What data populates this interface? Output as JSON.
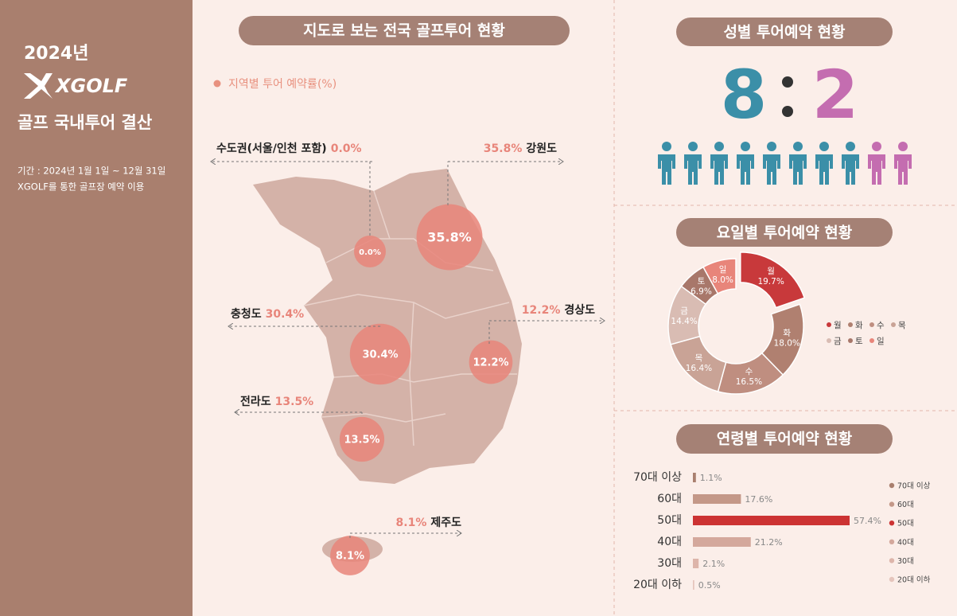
{
  "sidebar": {
    "year": "2024년",
    "logo": "XGOLF",
    "title": "골프 국내투어 결산",
    "period": "기간 : 2024년 1월 1일 ~ 12월 31일",
    "note": "XGOLF를 통한 골프장 예약 이용"
  },
  "map": {
    "title": "지도로 보는 전국 골프투어 현황",
    "legend": "지역별 투어 예약률(%)",
    "regions": [
      {
        "name": "수도권(서울/인천 포함)",
        "value": 0.0,
        "label": "0.0%"
      },
      {
        "name": "강원도",
        "value": 35.8,
        "label": "35.8%"
      },
      {
        "name": "충청도",
        "value": 30.4,
        "label": "30.4%"
      },
      {
        "name": "경상도",
        "value": 12.2,
        "label": "12.2%"
      },
      {
        "name": "전라도",
        "value": 13.5,
        "label": "13.5%"
      },
      {
        "name": "제주도",
        "value": 8.1,
        "label": "8.1%"
      }
    ]
  },
  "gender": {
    "title": "성별 투어예약 현황",
    "male": 8,
    "female": 2,
    "male_color": "#3b8fa8",
    "female_color": "#c46db0"
  },
  "chart_data": [
    {
      "type": "donut",
      "title": "요일별 투어예약 현황",
      "categories": [
        "월",
        "화",
        "수",
        "목",
        "금",
        "토",
        "일"
      ],
      "values": [
        19.7,
        18.0,
        16.5,
        16.4,
        14.4,
        6.9,
        8.0
      ],
      "value_labels": [
        "19.7%",
        "18.0%",
        "16.5%",
        "16.4%",
        "14.4%",
        "6.9%",
        "8.0%"
      ],
      "colors": [
        "#c8393b",
        "#b08070",
        "#bf8e80",
        "#c9a396",
        "#d9bcb3",
        "#a8776a",
        "#e8857a"
      ]
    },
    {
      "type": "hbar",
      "title": "연령별 투어예약 현황",
      "categories": [
        "70대 이상",
        "60대",
        "50대",
        "40대",
        "30대",
        "20대 이하"
      ],
      "values": [
        1.1,
        17.6,
        57.4,
        21.2,
        2.1,
        0.5
      ],
      "value_labels": [
        "1.1%",
        "17.6%",
        "57.4%",
        "21.2%",
        "2.1%",
        "0.5%"
      ],
      "colors": [
        "#a97f6e",
        "#c49888",
        "#cc3333",
        "#d4a89c",
        "#ddb5aa",
        "#e5c5bc"
      ]
    }
  ]
}
